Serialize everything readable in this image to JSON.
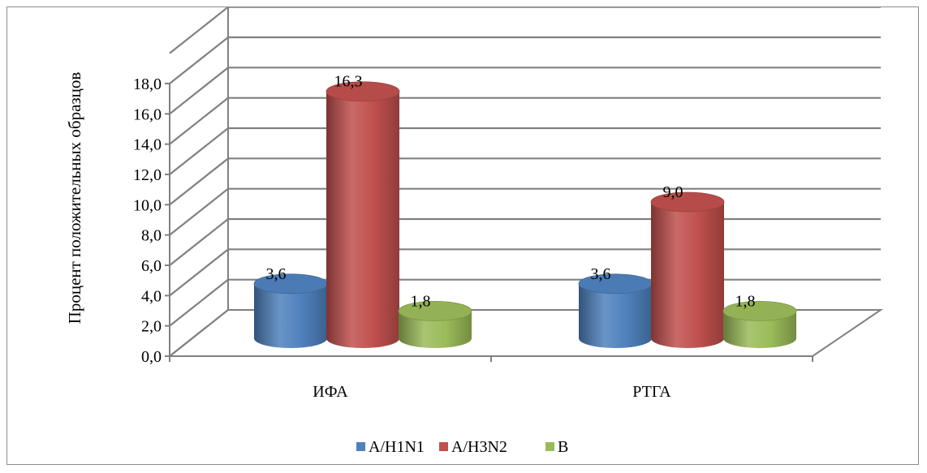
{
  "chart_data": {
    "type": "bar",
    "ylabel": "Процент положительных образцов",
    "xlabel": "",
    "title": "",
    "categories": [
      "ИФА",
      "РТГА"
    ],
    "yticks": [
      "0,0",
      "2,0",
      "4,0",
      "6,0",
      "8,0",
      "10,0",
      "12,0",
      "14,0",
      "16,0",
      "18,0"
    ],
    "ylim": [
      0,
      20
    ],
    "grid": true,
    "legend_position": "bottom",
    "series": [
      {
        "name": "A/H1N1",
        "color": "#4F81BD",
        "values": [
          3.6,
          3.6
        ],
        "labels": [
          "3,6",
          "3,6"
        ]
      },
      {
        "name": "A/H3N2",
        "color": "#C0504D",
        "values": [
          16.3,
          9.0
        ],
        "labels": [
          "16,3",
          "9,0"
        ]
      },
      {
        "name": "B",
        "color": "#9BBB59",
        "values": [
          1.8,
          1.8
        ],
        "labels": [
          "1,8",
          "1,8"
        ]
      }
    ]
  }
}
